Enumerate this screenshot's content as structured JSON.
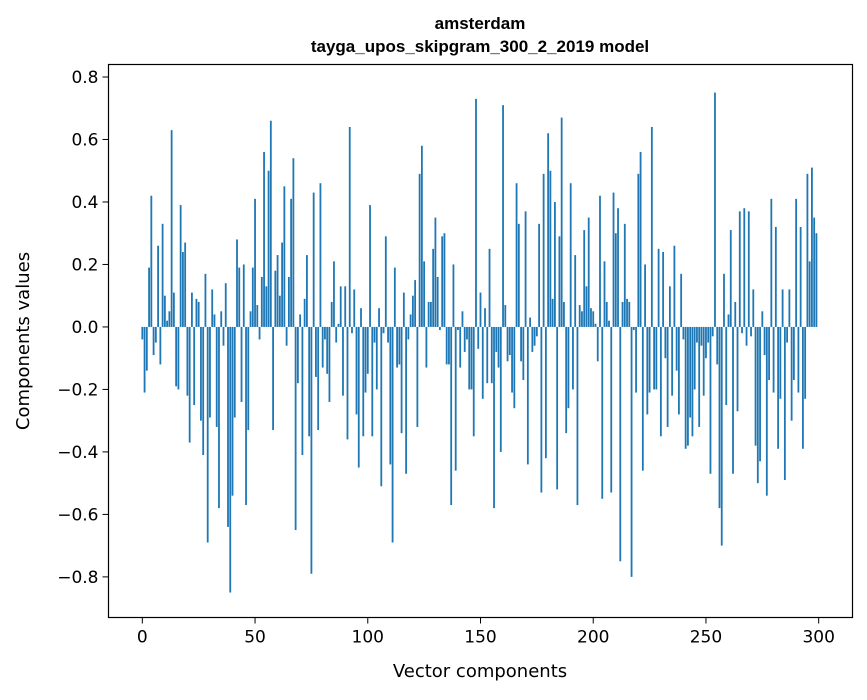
{
  "chart_data": {
    "type": "bar",
    "title": "amsterdam",
    "subtitle": "tayga_upos_skipgram_300_2_2019 model",
    "xlabel": "Vector components",
    "ylabel": "Components values",
    "xlim": [
      -15,
      315
    ],
    "ylim": [
      -0.93,
      0.84
    ],
    "xticks": [
      0,
      50,
      100,
      150,
      200,
      250,
      300
    ],
    "xtick_labels": [
      "0",
      "50",
      "100",
      "150",
      "200",
      "250",
      "300"
    ],
    "yticks": [
      -0.8,
      -0.6,
      -0.4,
      -0.2,
      0.0,
      0.2,
      0.4,
      0.6,
      0.8
    ],
    "ytick_labels": [
      "−0.8",
      "−0.6",
      "−0.4",
      "−0.2",
      "0.0",
      "0.2",
      "0.4",
      "0.6",
      "0.8"
    ],
    "grid": false,
    "color": "#1f77b4",
    "values": [
      -0.04,
      -0.21,
      -0.14,
      0.19,
      0.42,
      -0.09,
      -0.05,
      0.26,
      -0.12,
      0.33,
      0.1,
      0.02,
      0.05,
      0.63,
      0.11,
      -0.19,
      -0.2,
      0.39,
      0.24,
      0.27,
      -0.22,
      -0.37,
      0.11,
      -0.25,
      0.09,
      0.08,
      -0.3,
      -0.41,
      0.17,
      -0.69,
      -0.29,
      0.12,
      0.04,
      -0.32,
      -0.58,
      0.05,
      -0.06,
      0.14,
      -0.64,
      -0.85,
      -0.54,
      -0.29,
      0.28,
      0.19,
      -0.24,
      0.2,
      -0.57,
      -0.33,
      0.05,
      0.19,
      0.41,
      0.07,
      -0.04,
      0.16,
      0.56,
      0.13,
      0.5,
      0.66,
      -0.33,
      0.18,
      0.23,
      0.1,
      0.27,
      0.45,
      -0.06,
      0.16,
      0.41,
      0.54,
      -0.65,
      -0.18,
      0.04,
      -0.41,
      0.09,
      0.23,
      -0.35,
      -0.79,
      0.43,
      -0.16,
      -0.33,
      0.46,
      -0.13,
      -0.04,
      -0.15,
      -0.24,
      0.08,
      0.21,
      -0.05,
      0.01,
      0.13,
      -0.22,
      0.13,
      -0.36,
      0.64,
      -0.02,
      0.12,
      -0.28,
      -0.45,
      0.06,
      -0.35,
      -0.21,
      -0.15,
      0.39,
      -0.35,
      -0.05,
      -0.2,
      0.06,
      -0.51,
      -0.02,
      0.29,
      -0.05,
      -0.44,
      -0.69,
      0.19,
      -0.13,
      -0.12,
      -0.34,
      0.11,
      -0.47,
      -0.04,
      0.04,
      0.1,
      0.15,
      -0.32,
      0.49,
      0.58,
      0.21,
      -0.13,
      0.08,
      0.08,
      0.25,
      0.35,
      0.16,
      -0.01,
      0.29,
      0.3,
      -0.12,
      -0.12,
      -0.57,
      0.2,
      -0.46,
      -0.01,
      -0.13,
      0.05,
      -0.08,
      -0.04,
      -0.2,
      -0.2,
      -0.35,
      0.73,
      -0.07,
      0.11,
      -0.23,
      0.06,
      -0.18,
      0.25,
      -0.18,
      -0.58,
      -0.08,
      -0.13,
      -0.4,
      0.71,
      0.07,
      -0.11,
      -0.09,
      -0.21,
      -0.26,
      0.46,
      0.33,
      -0.11,
      -0.17,
      0.37,
      -0.44,
      0.03,
      -0.08,
      -0.06,
      -0.03,
      0.33,
      -0.53,
      0.49,
      -0.42,
      0.62,
      0.5,
      0.09,
      0.4,
      -0.52,
      0.29,
      0.67,
      0.08,
      -0.34,
      -0.26,
      0.46,
      -0.2,
      0.23,
      -0.57,
      0.07,
      0.05,
      0.31,
      0.13,
      0.35,
      0.06,
      0.05,
      0.01,
      -0.11,
      0.42,
      -0.55,
      0.21,
      0.08,
      0.02,
      -0.53,
      0.43,
      0.3,
      0.38,
      -0.75,
      0.08,
      0.33,
      0.09,
      0.08,
      -0.8,
      -0.01,
      -0.21,
      0.49,
      0.56,
      -0.46,
      0.2,
      -0.28,
      -0.21,
      0.64,
      -0.2,
      -0.2,
      0.25,
      -0.35,
      0.24,
      -0.1,
      -0.32,
      0.13,
      -0.22,
      0.26,
      -0.14,
      -0.28,
      0.17,
      -0.04,
      -0.39,
      -0.38,
      -0.29,
      -0.35,
      -0.2,
      -0.05,
      -0.32,
      -0.06,
      -0.22,
      -0.1,
      -0.05,
      -0.47,
      -0.03,
      0.75,
      -0.12,
      -0.58,
      -0.7,
      0.17,
      -0.25,
      0.04,
      0.31,
      -0.47,
      0.08,
      -0.27,
      0.37,
      -0.02,
      0.38,
      -0.06,
      0.37,
      -0.03,
      0.12,
      -0.38,
      -0.5,
      -0.43,
      0.05,
      -0.09,
      -0.54,
      -0.17,
      0.41,
      -0.21,
      0.32,
      -0.39,
      -0.23,
      0.12,
      -0.49,
      -0.05,
      0.12,
      -0.3,
      -0.17,
      0.41,
      -0.21,
      0.32,
      -0.39,
      -0.23,
      0.49,
      0.21,
      0.51,
      0.35,
      0.3
    ]
  }
}
